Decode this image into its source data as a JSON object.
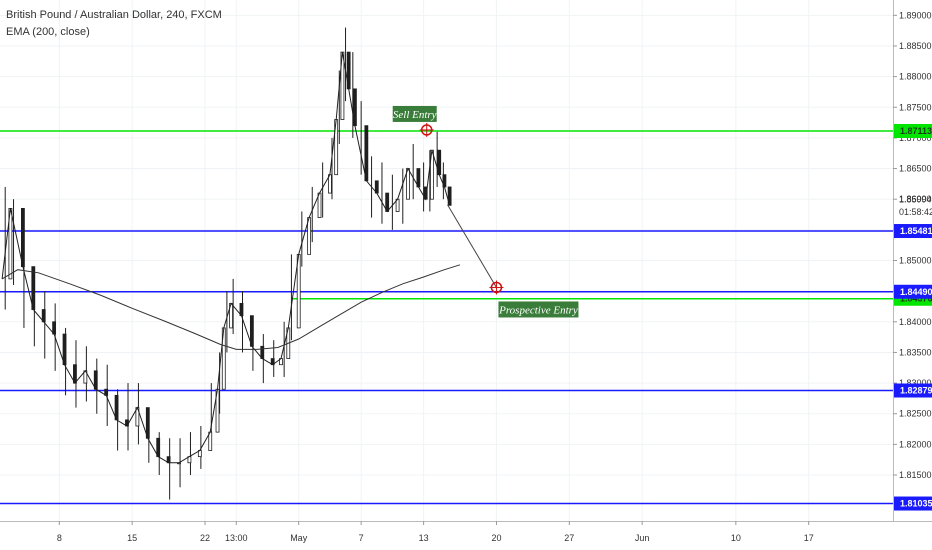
{
  "legend": {
    "title": "British Pound / Australian Dollar, 240, FXCM",
    "indicator": "EMA (200, close)"
  },
  "countdown": "01:58:42",
  "chart_data": {
    "type": "candlestick",
    "instrument": "British Pound / Australian Dollar",
    "timeframe": "240",
    "source": "FXCM",
    "y_axis_ticks": [
      "1.81500",
      "1.82000",
      "1.82500",
      "1.83000",
      "1.83500",
      "1.84000",
      "1.84500",
      "1.85000",
      "1.85500",
      "1.86000",
      "1.86500",
      "1.87000",
      "1.87500",
      "1.88000",
      "1.88500",
      "1.89000"
    ],
    "ylim": [
      1.8075,
      1.8925
    ],
    "x_axis_ticks": [
      {
        "label": "8",
        "day": 8
      },
      {
        "label": "15",
        "day": 15
      },
      {
        "label": "22",
        "day": 22
      },
      {
        "label": "13:00",
        "day": 25
      },
      {
        "label": "May",
        "day": 31
      },
      {
        "label": "7",
        "day": 37
      },
      {
        "label": "13",
        "day": 43
      },
      {
        "label": "20",
        "day": 50
      },
      {
        "label": "27",
        "day": 57
      },
      {
        "label": "Jun",
        "day": 64
      },
      {
        "label": "10",
        "day": 73
      },
      {
        "label": "17",
        "day": 80
      }
    ],
    "xlim": [
      2.3,
      88.1
    ],
    "price_series": {
      "day": [
        2.5,
        3.3,
        4.5,
        5.5,
        6.5,
        7.5,
        8.5,
        9.5,
        10.5,
        11.5,
        12.5,
        13.5,
        14.5,
        15.5,
        16.5,
        17.5,
        18.5,
        19.5,
        20.5,
        21.5,
        22.5,
        23.2,
        23.8,
        24.5,
        25.5,
        26.5,
        27.5,
        28.5,
        29.3,
        30,
        31,
        32,
        33,
        34,
        34.6,
        35.2,
        35.8,
        36.4,
        37.5,
        38.5,
        39.5,
        40.5,
        41.5,
        42.5,
        43.2,
        43.8,
        44.5,
        45,
        45.5
      ],
      "close": [
        1.847,
        1.8585,
        1.849,
        1.842,
        1.84,
        1.838,
        1.833,
        1.83,
        1.832,
        1.829,
        1.828,
        1.824,
        1.823,
        1.826,
        1.821,
        1.818,
        1.817,
        1.817,
        1.818,
        1.819,
        1.822,
        1.829,
        1.839,
        1.843,
        1.841,
        1.836,
        1.834,
        1.833,
        1.834,
        1.839,
        1.851,
        1.857,
        1.861,
        1.864,
        1.873,
        1.884,
        1.878,
        1.872,
        1.863,
        1.861,
        1.858,
        1.86,
        1.865,
        1.862,
        1.86,
        1.868,
        1.864,
        1.862,
        1.859
      ]
    },
    "candle_overlay": {
      "day": [
        2.8,
        3.6,
        4.6,
        5.6,
        6.6,
        7.6,
        8.6,
        9.6,
        10.6,
        11.6,
        12.6,
        13.6,
        14.6,
        15.6,
        16.6,
        17.6,
        18.6,
        19.6,
        20.6,
        21.6,
        22.6,
        23.4,
        24.1,
        24.7,
        25.6,
        26.6,
        27.6,
        28.6,
        29.6,
        30.3,
        31.3,
        32.3,
        33.3,
        34.2,
        34.9,
        35.5,
        36.2,
        37,
        38,
        39,
        40,
        41,
        42,
        43,
        43.6,
        44.3,
        44.9
      ],
      "high": [
        1.862,
        1.86,
        1.856,
        1.848,
        1.845,
        1.843,
        1.839,
        1.837,
        1.836,
        1.834,
        1.833,
        1.829,
        1.83,
        1.83,
        1.825,
        1.822,
        1.821,
        1.821,
        1.822,
        1.823,
        1.83,
        1.835,
        1.845,
        1.847,
        1.845,
        1.84,
        1.838,
        1.837,
        1.84,
        1.851,
        1.858,
        1.862,
        1.866,
        1.87,
        1.881,
        1.888,
        1.884,
        1.876,
        1.867,
        1.866,
        1.864,
        1.865,
        1.869,
        1.866,
        1.868,
        1.871,
        1.866
      ],
      "low": [
        1.842,
        1.846,
        1.839,
        1.836,
        1.834,
        1.832,
        1.828,
        1.826,
        1.827,
        1.825,
        1.823,
        1.819,
        1.819,
        1.82,
        1.817,
        1.815,
        1.811,
        1.813,
        1.815,
        1.816,
        1.819,
        1.825,
        1.835,
        1.838,
        1.835,
        1.832,
        1.83,
        1.831,
        1.831,
        1.837,
        1.849,
        1.853,
        1.857,
        1.86,
        1.869,
        1.876,
        1.87,
        1.864,
        1.857,
        1.856,
        1.855,
        1.856,
        1.86,
        1.858,
        1.858,
        1.862,
        1.86
      ]
    },
    "ema_200": {
      "day": [
        2.5,
        4,
        6,
        9,
        12,
        15,
        18,
        21,
        23.5,
        25,
        27,
        29,
        31,
        33,
        35,
        37,
        39,
        41,
        43,
        45,
        46.5
      ],
      "value": [
        1.847,
        1.8485,
        1.848,
        1.8462,
        1.8443,
        1.8422,
        1.8402,
        1.8381,
        1.8363,
        1.8355,
        1.8355,
        1.8358,
        1.8372,
        1.8392,
        1.8412,
        1.8432,
        1.8448,
        1.8462,
        1.8473,
        1.8485,
        1.8493
      ]
    },
    "horizontal_levels": [
      {
        "price": 1.87113,
        "label": "1.87113",
        "color": "#00e600"
      },
      {
        "price": 1.85481,
        "label": "1.85481",
        "color": "#1a1aff"
      },
      {
        "price": 1.84376,
        "label": "1.84376",
        "color": "#00e600",
        "start_day": 30.3
      },
      {
        "price": 1.8449,
        "label": "1.84490",
        "color": "#1a1aff"
      },
      {
        "price": 1.82879,
        "label": "1.82879",
        "color": "#1a1aff"
      },
      {
        "price": 1.81035,
        "label": "1.81035",
        "color": "#1a1aff"
      }
    ],
    "current_price": {
      "price": 1.85994,
      "label": "1.85994"
    },
    "projection": {
      "from": {
        "day": 45.3,
        "price": 1.8591
      },
      "to": {
        "day": 50,
        "price": 1.8456
      }
    },
    "annotations": [
      {
        "text": "Sell Entry",
        "day": 43.3,
        "price": 1.8713,
        "color": "#3a7d3a"
      },
      {
        "text": "Prospective Entry",
        "day": 50,
        "price": 1.8456,
        "color": "#3a7d3a"
      }
    ]
  }
}
